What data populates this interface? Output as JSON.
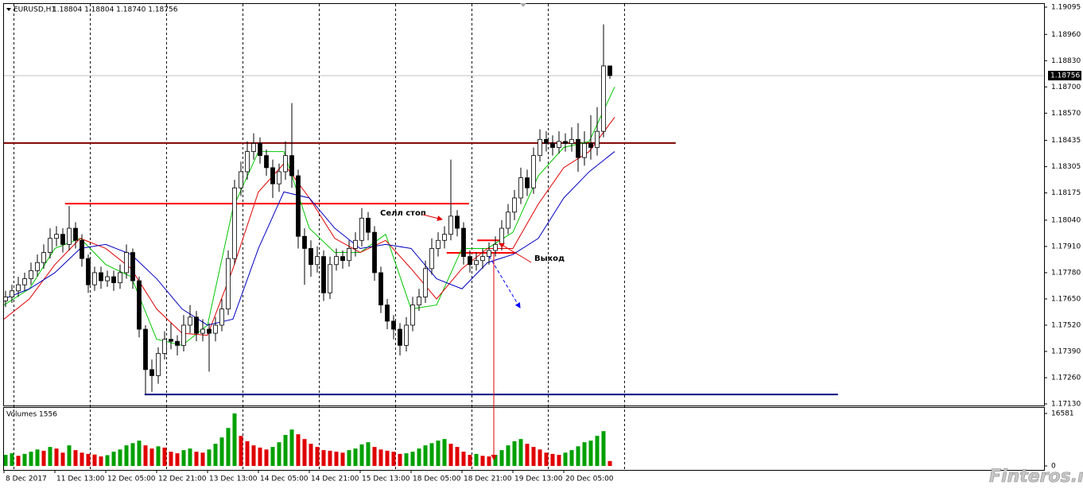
{
  "chart_data": {
    "type": "candlestick",
    "title": "EURUSD,H1",
    "subtitle": "1.18804 1.18804 1.18740 1.18756",
    "xlim": [
      0,
      163.375
    ],
    "xticks": [
      {
        "value": 0,
        "label": "8 Dec 2017"
      },
      {
        "value": 8,
        "label": "11 Dec 13:00"
      },
      {
        "value": 16,
        "label": "12 Dec 05:00"
      },
      {
        "value": 24,
        "label": "12 Dec 21:00"
      },
      {
        "value": 32,
        "label": "13 Dec 13:00"
      },
      {
        "value": 40,
        "label": "14 Dec 05:00"
      },
      {
        "value": 48,
        "label": "14 Dec 21:00"
      },
      {
        "value": 56,
        "label": "15 Dec 13:00"
      },
      {
        "value": 64,
        "label": "18 Dec 05:00"
      },
      {
        "value": 72,
        "label": "18 Dec 21:00"
      },
      {
        "value": 80,
        "label": "19 Dec 13:00"
      },
      {
        "value": 88,
        "label": "20 Dec 05:00"
      }
    ],
    "day_separators": [
      1.5,
      13.5,
      25.5,
      37.5,
      49.5,
      61.5,
      73.5,
      85.5,
      97.5
    ],
    "ylim": [
      1.1713,
      1.19095
    ],
    "yticks": [
      1.19095,
      {
        "value": 1.1896,
        "label": "1.18960"
      },
      {
        "value": 1.1883,
        "label": "1.18830"
      },
      {
        "value": 1.187,
        "label": "1.18700"
      },
      {
        "value": 1.1857,
        "label": "1.18570"
      },
      1.18435,
      1.18305,
      1.18175,
      {
        "value": 1.1804,
        "label": "1.18040"
      },
      {
        "value": 1.1791,
        "label": "1.17910"
      },
      {
        "value": 1.1778,
        "label": "1.17780"
      },
      {
        "value": 1.1765,
        "label": "1.17650"
      },
      {
        "value": 1.1752,
        "label": "1.17520"
      },
      {
        "value": 1.1739,
        "label": "1.17390"
      },
      {
        "value": 1.1726,
        "label": "1.17260"
      },
      {
        "value": 1.1713,
        "label": "1.17130"
      }
    ],
    "current_price": 1.18756,
    "open": [
      1.1764,
      1.1766,
      1.1769,
      1.1772,
      1.1775,
      1.1779,
      1.1783,
      1.1788,
      1.1795,
      1.1797,
      1.1792,
      1.18,
      1.1794,
      1.1785,
      1.1772,
      1.1778,
      1.1774,
      1.1776,
      1.1773,
      1.1778,
      1.1788,
      1.1774,
      1.175,
      1.173,
      1.1727,
      1.1738,
      1.1745,
      1.1744,
      1.1742,
      1.1752,
      1.1756,
      1.1748,
      1.175,
      1.1748,
      1.1752,
      1.176,
      1.1785,
      1.182,
      1.1828,
      1.1838,
      1.1842,
      1.1836,
      1.183,
      1.1822,
      1.1828,
      1.1836,
      1.1826,
      1.1796,
      1.179,
      1.1782,
      1.1786,
      1.1768,
      1.1782,
      1.1786,
      1.1784,
      1.179,
      1.1794,
      1.1805,
      1.1798,
      1.1778,
      1.1762,
      1.1754,
      1.175,
      1.1742,
      1.1752,
      1.1762,
      1.1766,
      1.178,
      1.179,
      1.1794,
      1.1797,
      1.1806,
      1.18,
      1.1786,
      1.1782,
      1.1784,
      1.1786,
      1.1789,
      1.1792,
      1.18,
      1.1808,
      1.1815,
      1.1825,
      1.182,
      1.1836,
      1.1844,
      1.1842,
      1.184,
      1.1843,
      1.1842,
      1.1844,
      1.1835,
      1.1842,
      1.184,
      1.1848,
      1.18804
    ],
    "high": [
      1.1769,
      1.1772,
      1.1776,
      1.1778,
      1.1783,
      1.1787,
      1.1792,
      1.18,
      1.1801,
      1.18,
      1.1811,
      1.1803,
      1.1797,
      1.1787,
      1.1781,
      1.1781,
      1.1779,
      1.1779,
      1.1782,
      1.1792,
      1.179,
      1.1776,
      1.1752,
      1.1735,
      1.1741,
      1.1749,
      1.1753,
      1.1747,
      1.1757,
      1.1762,
      1.1759,
      1.1755,
      1.1753,
      1.1756,
      1.1765,
      1.1789,
      1.1824,
      1.1833,
      1.1843,
      1.1847,
      1.1845,
      1.1839,
      1.1834,
      1.1832,
      1.1843,
      1.1862,
      1.1829,
      1.18,
      1.1794,
      1.1791,
      1.1789,
      1.1786,
      1.179,
      1.1789,
      1.1794,
      1.1798,
      1.181,
      1.1808,
      1.1801,
      1.1781,
      1.1765,
      1.1757,
      1.1753,
      1.1756,
      1.1766,
      1.177,
      1.1784,
      1.1795,
      1.1798,
      1.1801,
      1.1834,
      1.1809,
      1.1803,
      1.1789,
      1.1788,
      1.179,
      1.1793,
      1.1796,
      1.1804,
      1.1812,
      1.1819,
      1.183,
      1.1829,
      1.184,
      1.1849,
      1.1848,
      1.1846,
      1.1848,
      1.1847,
      1.185,
      1.1852,
      1.1848,
      1.1856,
      1.186,
      1.1901,
      1.18804
    ],
    "low": [
      1.1761,
      1.1763,
      1.1766,
      1.1769,
      1.1772,
      1.1776,
      1.178,
      1.1785,
      1.1791,
      1.1788,
      1.1789,
      1.179,
      1.1781,
      1.1768,
      1.1769,
      1.177,
      1.1771,
      1.1769,
      1.177,
      1.1775,
      1.177,
      1.1746,
      1.1718,
      1.1719,
      1.1723,
      1.1735,
      1.174,
      1.1737,
      1.1739,
      1.1748,
      1.1744,
      1.1744,
      1.1729,
      1.1744,
      1.1749,
      1.1757,
      1.1782,
      1.1816,
      1.1824,
      1.1834,
      1.1832,
      1.1826,
      1.1815,
      1.1818,
      1.1824,
      1.182,
      1.179,
      1.1772,
      1.1776,
      1.1778,
      1.1764,
      1.1765,
      1.1779,
      1.178,
      1.1781,
      1.1786,
      1.1791,
      1.1794,
      1.1774,
      1.1758,
      1.175,
      1.1745,
      1.1737,
      1.1739,
      1.1749,
      1.1759,
      1.1763,
      1.1777,
      1.1786,
      1.179,
      1.1794,
      1.1796,
      1.1782,
      1.1778,
      1.1779,
      1.178,
      1.1782,
      1.1786,
      1.1789,
      1.1797,
      1.1804,
      1.1812,
      1.1816,
      1.1817,
      1.1833,
      1.1838,
      1.1836,
      1.1837,
      1.1838,
      1.1838,
      1.1828,
      1.1831,
      1.1834,
      1.1836,
      1.1845,
      1.1874
    ],
    "close": [
      1.1766,
      1.1769,
      1.1772,
      1.1775,
      1.1779,
      1.1783,
      1.1788,
      1.1795,
      1.1797,
      1.1792,
      1.18,
      1.1794,
      1.1785,
      1.1772,
      1.1778,
      1.1774,
      1.1776,
      1.1773,
      1.1778,
      1.1788,
      1.1774,
      1.175,
      1.173,
      1.1727,
      1.1738,
      1.1745,
      1.1744,
      1.1742,
      1.1752,
      1.1756,
      1.1748,
      1.175,
      1.1748,
      1.1752,
      1.176,
      1.1785,
      1.182,
      1.1828,
      1.1838,
      1.1842,
      1.1836,
      1.183,
      1.1822,
      1.1828,
      1.1836,
      1.1826,
      1.1796,
      1.179,
      1.1782,
      1.1786,
      1.1768,
      1.1782,
      1.1786,
      1.1784,
      1.179,
      1.1794,
      1.1805,
      1.1798,
      1.1778,
      1.1762,
      1.1754,
      1.175,
      1.1742,
      1.1752,
      1.1762,
      1.1766,
      1.178,
      1.179,
      1.1794,
      1.1797,
      1.1806,
      1.18,
      1.1786,
      1.1782,
      1.1784,
      1.1786,
      1.1789,
      1.1792,
      1.18,
      1.1808,
      1.1815,
      1.1825,
      1.182,
      1.1836,
      1.1844,
      1.1842,
      1.184,
      1.1843,
      1.1842,
      1.1844,
      1.1835,
      1.1842,
      1.184,
      1.1848,
      1.18804,
      1.18756
    ],
    "up_color": "#ffffff",
    "down_color": "#000000",
    "moving_averages": {
      "x": [
        0,
        4,
        8,
        12,
        16,
        20,
        24,
        28,
        32,
        36,
        40,
        44,
        48,
        52,
        56,
        60,
        64,
        68,
        72,
        76,
        80,
        84,
        88,
        92,
        96
      ],
      "series": [
        {
          "color": "#00c800",
          "values": [
            1.1762,
            1.177,
            1.179,
            1.1795,
            1.1782,
            1.1776,
            1.1745,
            1.1742,
            1.1752,
            1.181,
            1.1838,
            1.1838,
            1.18,
            1.1788,
            1.1788,
            1.1797,
            1.176,
            1.1762,
            1.179,
            1.179,
            1.1798,
            1.1826,
            1.184,
            1.1843,
            1.187
          ]
        },
        {
          "color": "#e00000",
          "values": [
            1.1755,
            1.1765,
            1.1782,
            1.1795,
            1.179,
            1.178,
            1.176,
            1.1748,
            1.1747,
            1.178,
            1.1818,
            1.1832,
            1.1815,
            1.1795,
            1.1788,
            1.1794,
            1.178,
            1.1765,
            1.178,
            1.179,
            1.179,
            1.1812,
            1.183,
            1.1838,
            1.1855
          ]
        },
        {
          "color": "#0000c0",
          "values": [
            1.1765,
            1.177,
            1.1778,
            1.179,
            1.1792,
            1.1787,
            1.1775,
            1.176,
            1.1752,
            1.1755,
            1.179,
            1.1818,
            1.1815,
            1.18,
            1.179,
            1.1792,
            1.179,
            1.1775,
            1.177,
            1.1783,
            1.1787,
            1.1795,
            1.1815,
            1.1828,
            1.1838
          ]
        }
      ]
    },
    "levels": [
      {
        "value": 1.18422,
        "from": 0,
        "to": 105.6,
        "color": "#800000"
      },
      {
        "value": 1.18122,
        "from": 9.6,
        "to": 73.1,
        "color": "#ff0000"
      },
      {
        "value": 1.17177,
        "from": 22.1,
        "to": 131.1,
        "color": "#000080"
      },
      {
        "value": 1.17878,
        "from": 69.6,
        "to": 80.6,
        "color": "#ff0000"
      },
      {
        "value": 1.1794,
        "from": 74.4,
        "to": 78.1,
        "color": "#ff0000"
      }
    ],
    "annotations": [
      "Селл стоп",
      "Выход"
    ],
    "volume": {
      "title": "Volumes 1556",
      "values": [
        3500,
        4000,
        3200,
        3800,
        4500,
        5200,
        4800,
        6000,
        5500,
        4200,
        6500,
        5000,
        4200,
        3800,
        3600,
        3000,
        3400,
        4500,
        5200,
        6500,
        7200,
        8000,
        6500,
        5500,
        6200,
        5800,
        4500,
        4000,
        5000,
        5500,
        4500,
        4200,
        5200,
        7000,
        9000,
        12000,
        16581,
        9500,
        7800,
        6500,
        5800,
        5200,
        6000,
        7500,
        9800,
        11500,
        10000,
        8500,
        7000,
        6000,
        5000,
        4800,
        4500,
        4200,
        5000,
        5500,
        6800,
        7500,
        6000,
        5200,
        4800,
        4500,
        3800,
        4000,
        4500,
        5500,
        6500,
        7200,
        8000,
        8500,
        7000,
        6000,
        4500,
        3500,
        3800,
        3200,
        3000,
        3500,
        5000,
        6500,
        7800,
        8500,
        7000,
        6000,
        5200,
        4200,
        3800,
        3500,
        4200,
        5000,
        6200,
        7500,
        8000,
        9500,
        11000,
        1556
      ],
      "ylim": [
        0,
        18590
      ],
      "yticks": [
        0,
        16581
      ],
      "up_color": "#00a000",
      "down_color": "#e00000"
    },
    "watermark": "Finteros.ru"
  }
}
